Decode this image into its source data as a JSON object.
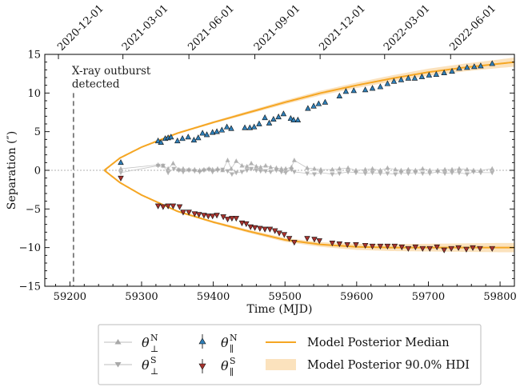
{
  "chart_data": {
    "type": "scatter",
    "xlabel": "Time (MJD)",
    "ylabel": "Separation (″)",
    "xlim": [
      59165,
      59820
    ],
    "ylim": [
      -15,
      15
    ],
    "x_ticks": [
      59200,
      59300,
      59400,
      59500,
      59600,
      59700,
      59800
    ],
    "y_ticks": [
      -15,
      -10,
      -5,
      0,
      5,
      10,
      15
    ],
    "top_ticks": [
      {
        "mjd": 59184,
        "label": "2020-12-01"
      },
      {
        "mjd": 59274,
        "label": "2021-03-01"
      },
      {
        "mjd": 59366,
        "label": "2021-06-01"
      },
      {
        "mjd": 59458,
        "label": "2021-09-01"
      },
      {
        "mjd": 59549,
        "label": "2021-12-01"
      },
      {
        "mjd": 59639,
        "label": "2022-03-01"
      },
      {
        "mjd": 59731,
        "label": "2022-06-01"
      }
    ],
    "annotation": {
      "text_line1": "X-ray outburst",
      "text_line2": "detected",
      "mjd": 59205
    },
    "ejection_mjd": 59248,
    "model_north": {
      "name": "Model Posterior Median",
      "x": [
        59248,
        59270,
        59300,
        59350,
        59400,
        59450,
        59500,
        59550,
        59600,
        59650,
        59700,
        59750,
        59800,
        59820
      ],
      "y": [
        0,
        1.6,
        3.0,
        4.8,
        6.2,
        7.5,
        8.8,
        10.0,
        11.0,
        11.9,
        12.7,
        13.3,
        13.8,
        14.0
      ],
      "hdi_half_width": [
        0,
        0.05,
        0.1,
        0.12,
        0.15,
        0.2,
        0.25,
        0.3,
        0.35,
        0.4,
        0.45,
        0.5,
        0.55,
        0.6
      ]
    },
    "model_south": {
      "x": [
        59248,
        59270,
        59300,
        59350,
        59400,
        59450,
        59500,
        59550,
        59600,
        59650,
        59700,
        59750,
        59800,
        59820
      ],
      "y": [
        0,
        -1.6,
        -3.2,
        -5.3,
        -6.7,
        -7.9,
        -9.0,
        -9.6,
        -9.9,
        -10.0,
        -10.0,
        -10.0,
        -10.0,
        -10.0
      ],
      "hdi_half_width": [
        0,
        0.05,
        0.1,
        0.12,
        0.15,
        0.2,
        0.25,
        0.3,
        0.4,
        0.45,
        0.5,
        0.55,
        0.6,
        0.6
      ]
    },
    "series": [
      {
        "name": "θ∥N",
        "x": [
          59271,
          59323,
          59327,
          59333,
          59337,
          59341,
          59350,
          59357,
          59365,
          59373,
          59379,
          59385,
          59391,
          59399,
          59405,
          59412,
          59419,
          59425,
          59444,
          59451,
          59457,
          59464,
          59472,
          59478,
          59484,
          59491,
          59498,
          59508,
          59512,
          59518,
          59532,
          59540,
          59547,
          59556,
          59576,
          59585,
          59596,
          59612,
          59622,
          59633,
          59643,
          59652,
          59662,
          59672,
          59681,
          59691,
          59701,
          59711,
          59722,
          59733,
          59743,
          59754,
          59764,
          59773,
          59789
        ],
        "y": [
          1.0,
          3.8,
          3.6,
          4.1,
          4.2,
          4.3,
          3.8,
          4.1,
          4.3,
          3.9,
          4.2,
          4.8,
          4.6,
          4.9,
          5.0,
          5.2,
          5.6,
          5.4,
          5.5,
          5.5,
          5.6,
          6.0,
          6.8,
          6.1,
          6.6,
          6.9,
          7.3,
          6.7,
          6.5,
          6.5,
          8.0,
          8.3,
          8.6,
          8.8,
          9.6,
          10.2,
          10.3,
          10.4,
          10.6,
          10.8,
          11.2,
          11.5,
          11.7,
          11.9,
          11.9,
          12.1,
          12.3,
          12.4,
          12.6,
          12.8,
          13.2,
          13.3,
          13.4,
          13.5,
          13.8
        ]
      },
      {
        "name": "θ∥S",
        "x": [
          59271,
          59323,
          59330,
          59337,
          59344,
          59353,
          59358,
          59366,
          59374,
          59380,
          59387,
          59393,
          59399,
          59405,
          59414,
          59420,
          59426,
          59432,
          59440,
          59446,
          59452,
          59458,
          59465,
          59472,
          59479,
          59486,
          59492,
          59499,
          59506,
          59513,
          59531,
          59541,
          59548,
          59566,
          59576,
          59587,
          59599,
          59612,
          59622,
          59633,
          59643,
          59653,
          59663,
          59672,
          59682,
          59692,
          59702,
          59712,
          59722,
          59732,
          59742,
          59753,
          59762,
          59772,
          59789
        ],
        "y": [
          -1.0,
          -4.6,
          -4.7,
          -4.6,
          -4.6,
          -4.7,
          -5.4,
          -5.4,
          -5.6,
          -5.7,
          -5.8,
          -5.9,
          -5.9,
          -5.8,
          -6.0,
          -6.3,
          -6.2,
          -6.2,
          -6.8,
          -6.9,
          -7.3,
          -7.4,
          -7.5,
          -7.6,
          -7.6,
          -7.8,
          -8.1,
          -8.3,
          -8.8,
          -9.3,
          -8.8,
          -8.9,
          -9.1,
          -9.4,
          -9.5,
          -9.6,
          -9.6,
          -9.7,
          -9.8,
          -9.8,
          -9.8,
          -9.8,
          -9.9,
          -10.1,
          -9.9,
          -10.1,
          -10.1,
          -9.9,
          -10.3,
          -10.1,
          -10.0,
          -10.2,
          -10.0,
          -10.1,
          -10.1
        ]
      },
      {
        "name": "θ⊥N",
        "x": [
          59271,
          59323,
          59330,
          59337,
          59344,
          59352,
          59358,
          59366,
          59374,
          59381,
          59387,
          59394,
          59399,
          59406,
          59413,
          59420,
          59425,
          59432,
          59440,
          59447,
          59453,
          59460,
          59466,
          59473,
          59480,
          59488,
          59495,
          59501,
          59509,
          59513,
          59531,
          59541,
          59550,
          59566,
          59576,
          59588,
          59599,
          59612,
          59622,
          59633,
          59643,
          59654,
          59662,
          59672,
          59682,
          59692,
          59702,
          59713,
          59723,
          59733,
          59743,
          59754,
          59763,
          59773,
          59789
        ],
        "y": [
          0.2,
          0.7,
          0.6,
          0.2,
          0.9,
          0.1,
          0.2,
          0.1,
          0.1,
          0.0,
          0.1,
          0.2,
          0.1,
          0.2,
          0.0,
          1.3,
          0.2,
          1.2,
          0.6,
          0.5,
          0.9,
          0.5,
          0.4,
          0.6,
          0.4,
          0.3,
          0.2,
          0.2,
          0.4,
          1.3,
          0.3,
          0.2,
          0.1,
          0.1,
          0.2,
          0.3,
          0.0,
          0.1,
          0.2,
          0.0,
          0.3,
          0.1,
          0.0,
          0.1,
          0.0,
          0.2,
          0.0,
          0.0,
          0.1,
          0.1,
          0.2,
          0.1,
          0.0,
          0.0,
          0.2
        ]
      },
      {
        "name": "θ⊥S",
        "x": [
          59271,
          59323,
          59330,
          59337,
          59345,
          59352,
          59358,
          59366,
          59374,
          59381,
          59387,
          59394,
          59399,
          59406,
          59413,
          59420,
          59426,
          59432,
          59440,
          59447,
          59453,
          59460,
          59466,
          59473,
          59480,
          59488,
          59495,
          59501,
          59509,
          59513,
          59531,
          59541,
          59550,
          59566,
          59576,
          59588,
          59599,
          59612,
          59622,
          59633,
          59643,
          59654,
          59662,
          59672,
          59682,
          59692,
          59702,
          59713,
          59723,
          59733,
          59743,
          59754,
          59763,
          59773,
          59789
        ],
        "y": [
          -0.3,
          0.6,
          0.6,
          -0.3,
          0.2,
          0.0,
          -0.2,
          0.0,
          -0.1,
          -0.2,
          0.0,
          0.1,
          -0.2,
          0.0,
          0.1,
          -0.1,
          -0.5,
          -0.3,
          -0.2,
          0.0,
          0.2,
          0.0,
          -0.1,
          -0.1,
          -0.2,
          0.0,
          -0.2,
          -0.3,
          0.1,
          -0.2,
          -0.4,
          -0.5,
          -0.3,
          -0.5,
          -0.4,
          -0.2,
          -0.3,
          -0.4,
          -0.3,
          -0.4,
          -0.4,
          -0.5,
          -0.3,
          -0.4,
          -0.3,
          -0.4,
          -0.4,
          -0.2,
          -0.4,
          -0.3,
          -0.3,
          -0.5,
          -0.2,
          -0.3,
          -0.3
        ]
      }
    ]
  },
  "legend": {
    "perp_n": {
      "sym": "θ",
      "sup": "N",
      "sub": "⊥"
    },
    "perp_s": {
      "sym": "θ",
      "sup": "S",
      "sub": "⊥"
    },
    "par_n": {
      "sym": "θ",
      "sup": "N",
      "sub": "∥"
    },
    "par_s": {
      "sym": "θ",
      "sup": "S",
      "sub": "∥"
    },
    "median_label": "Model Posterior Median",
    "hdi_label": "Model Posterior 90.0% HDI"
  },
  "colors": {
    "model": "#f5a623",
    "hdi": "#fbe2bd",
    "north": "#2f7fb8",
    "south": "#a8322d",
    "perp": "#a8a8a8"
  }
}
